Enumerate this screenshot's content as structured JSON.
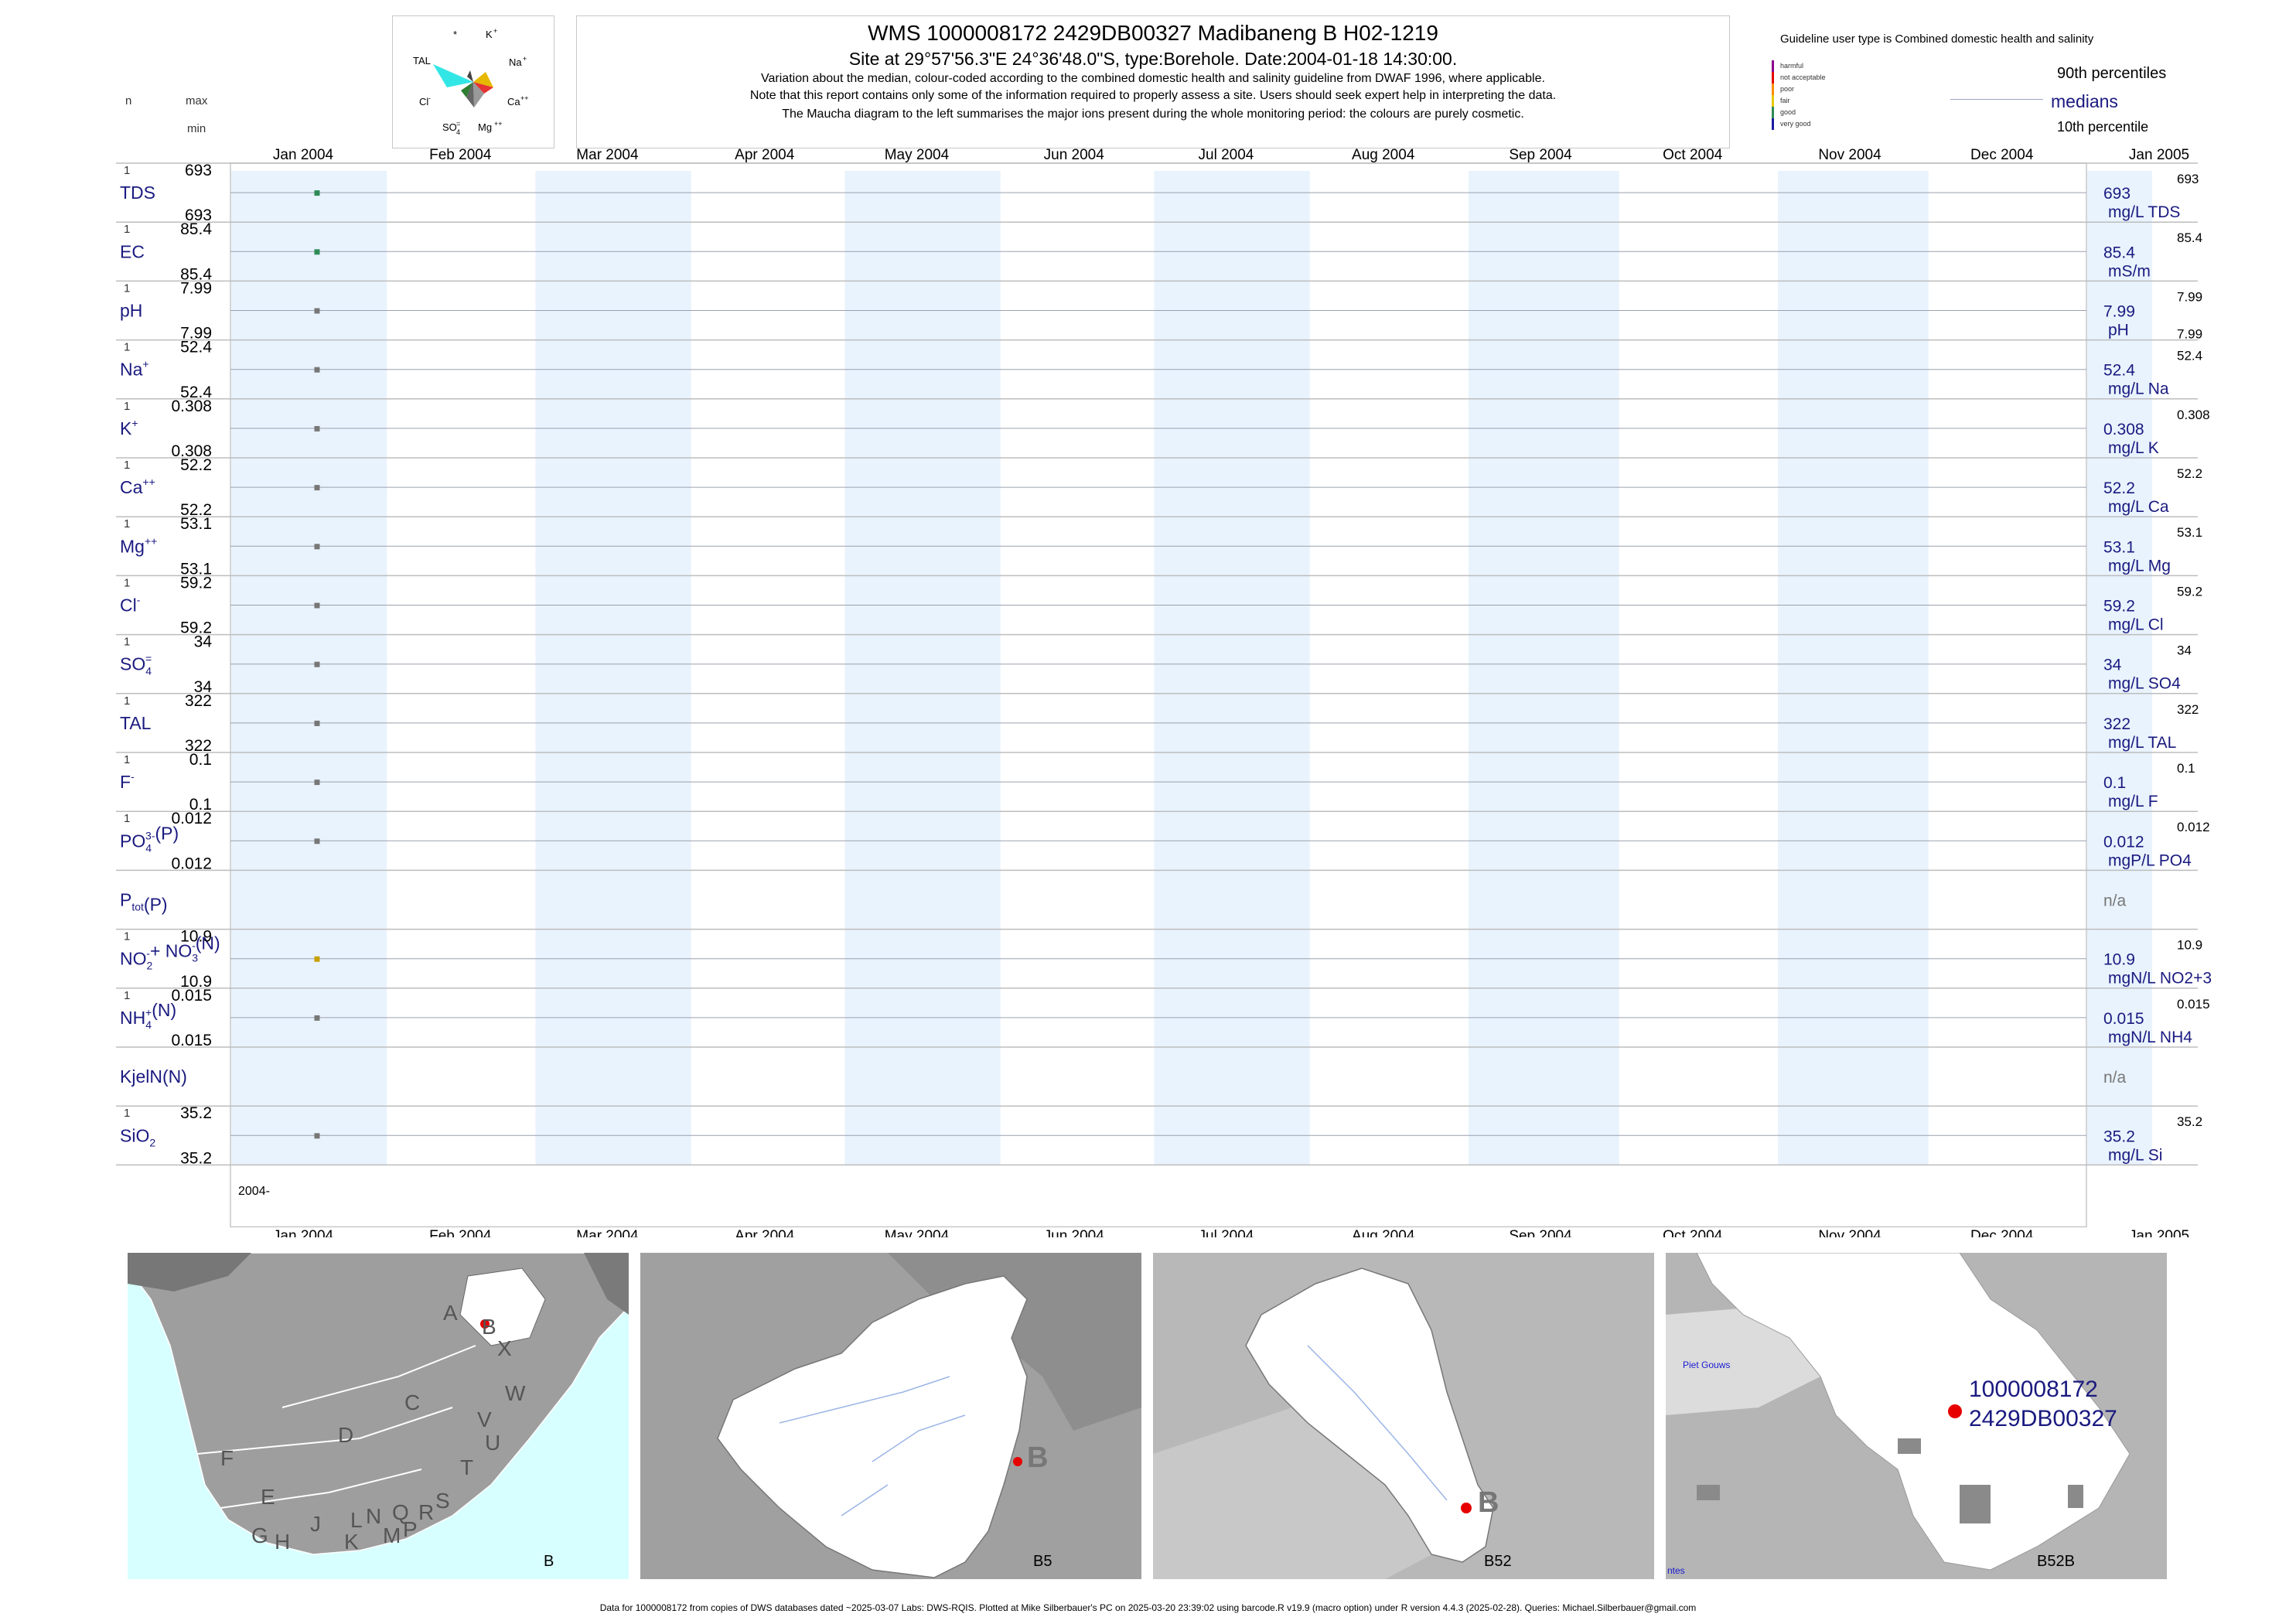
{
  "header": {
    "title": "WMS 1000008172 2429DB00327 Madibaneng B H02-1219",
    "subtitle": "Site at 29°57'56.3\"E 24°36'48.0\"S, type:Borehole. Date:2004-01-18 14:30:00.",
    "note1": "Variation about the median,  colour-coded according to the combined domestic health and salinity guideline from DWAF 1996, where applicable.",
    "note2": "Note that this report contains only some of the information required to properly assess a site. Users should seek expert help in interpreting the data.",
    "note3": "The Maucha diagram to the left summarises the major ions present during the whole monitoring period: the colours are purely cosmetic."
  },
  "left_header": {
    "n": "n",
    "max": "max",
    "min": "min"
  },
  "maucha": {
    "labels": [
      "*",
      "K+",
      "Na+",
      "Ca++",
      "Mg++",
      "SO4=",
      "Cl-",
      "TAL"
    ],
    "colors": {
      "tal": "#33e6e6",
      "na": "#e6b800",
      "ca": "#e63333",
      "mg": "#999999",
      "so4": "#666666",
      "cl": "#2e7d32",
      "k": "#444444"
    }
  },
  "legend": {
    "title": "Guideline user type is Combined domestic health and salinity",
    "classes": [
      {
        "label": "harmful",
        "color": "#8b008b"
      },
      {
        "label": "not acceptable",
        "color": "#e60000"
      },
      {
        "label": "poor",
        "color": "#ff8c00"
      },
      {
        "label": "fair",
        "color": "#e6c800"
      },
      {
        "label": "good",
        "color": "#2e8b57"
      },
      {
        "label": "very good",
        "color": "#1a1aa0"
      }
    ],
    "p90": "90th percentiles",
    "medians": "medians",
    "p10": "10th percentile"
  },
  "axis": {
    "months": [
      "Jan 2004",
      "Feb 2004",
      "Mar 2004",
      "Apr 2004",
      "May 2004",
      "Jun 2004",
      "Jul 2004",
      "Aug 2004",
      "Sep 2004",
      "Oct 2004",
      "Nov 2004",
      "Dec 2004",
      "Jan 2005"
    ],
    "year_label": "2004-"
  },
  "chart_data": {
    "type": "scatter",
    "x_range": [
      "2004-01-01",
      "2005-01-01"
    ],
    "sample_date": "2004-01-18",
    "panels": [
      {
        "id": "tds",
        "label": "TDS",
        "n": "1",
        "max": "693",
        "min": "693",
        "value": 693,
        "right_value": "693",
        "right_unit": "mg/L TDS",
        "right_max": "693",
        "right_min": "",
        "color": "#2e8b57"
      },
      {
        "id": "ec",
        "label": "EC",
        "n": "1",
        "max": "85.4",
        "min": "85.4",
        "value": 85.4,
        "right_value": "85.4",
        "right_unit": "mS/m",
        "right_max": "85.4",
        "right_min": "",
        "color": "#2e8b57"
      },
      {
        "id": "ph",
        "label": "pH",
        "n": "1",
        "max": "7.99",
        "min": "7.99",
        "value": 7.99,
        "right_value": "7.99",
        "right_unit": "pH",
        "right_max": "7.99",
        "right_min": "7.99",
        "color": "#777777"
      },
      {
        "id": "na",
        "label": "Na",
        "sup": "+",
        "n": "1",
        "max": "52.4",
        "min": "52.4",
        "value": 52.4,
        "right_value": "52.4",
        "right_unit": "mg/L Na",
        "right_max": "52.4",
        "right_min": "",
        "color": "#777777"
      },
      {
        "id": "k",
        "label": "K",
        "sup": "+",
        "n": "1",
        "max": "0.308",
        "min": "0.308",
        "value": 0.308,
        "right_value": "0.308",
        "right_unit": "mg/L K",
        "right_max": "0.308",
        "right_min": "",
        "color": "#777777"
      },
      {
        "id": "ca",
        "label": "Ca",
        "sup": "++",
        "n": "1",
        "max": "52.2",
        "min": "52.2",
        "value": 52.2,
        "right_value": "52.2",
        "right_unit": "mg/L Ca",
        "right_max": "52.2",
        "right_min": "",
        "color": "#777777"
      },
      {
        "id": "mg",
        "label": "Mg",
        "sup": "++",
        "n": "1",
        "max": "53.1",
        "min": "53.1",
        "value": 53.1,
        "right_value": "53.1",
        "right_unit": "mg/L Mg",
        "right_max": "53.1",
        "right_min": "",
        "color": "#777777"
      },
      {
        "id": "cl",
        "label": "Cl",
        "sup": "-",
        "n": "1",
        "max": "59.2",
        "min": "59.2",
        "value": 59.2,
        "right_value": "59.2",
        "right_unit": "mg/L Cl",
        "right_max": "59.2",
        "right_min": "",
        "color": "#777777"
      },
      {
        "id": "so4",
        "label": "SO",
        "sub": "4",
        "sup": "=",
        "n": "1",
        "max": "34",
        "min": "34",
        "value": 34,
        "right_value": "34",
        "right_unit": "mg/L SO4",
        "right_max": "34",
        "right_min": "",
        "color": "#777777"
      },
      {
        "id": "tal",
        "label": "TAL",
        "n": "1",
        "max": "322",
        "min": "322",
        "value": 322,
        "right_value": "322",
        "right_unit": "mg/L TAL",
        "right_max": "322",
        "right_min": "",
        "color": "#777777"
      },
      {
        "id": "f",
        "label": "F",
        "sup": "-",
        "n": "1",
        "max": "0.1",
        "min": "0.1",
        "value": 0.1,
        "right_value": "0.1",
        "right_unit": "mg/L F",
        "right_max": "0.1",
        "right_min": "",
        "color": "#777777"
      },
      {
        "id": "po4",
        "label": "PO",
        "sub": "4",
        "sup": "3-",
        "tail": "(P)",
        "n": "1",
        "max": "0.012",
        "min": "0.012",
        "value": 0.012,
        "right_value": "0.012",
        "right_unit": "mgP/L PO4",
        "right_max": "0.012",
        "right_min": "",
        "color": "#777777"
      },
      {
        "id": "ptot",
        "label": "P",
        "sub": "tot",
        "tail": "(P)",
        "n": "",
        "max": "",
        "min": "",
        "value": null,
        "right_value": "n/a",
        "right_unit": "",
        "right_max": "",
        "right_min": "",
        "color": "#777777"
      },
      {
        "id": "nox",
        "label": "NO",
        "sub": "2",
        "sup": "-",
        "tail": "+ NO",
        "sub2": "3",
        "sup2": "-",
        "tail2": "(N)",
        "n": "1",
        "max": "10.9",
        "min": "10.9",
        "value": 10.9,
        "right_value": "10.9",
        "right_unit": "mgN/L NO2+3",
        "right_max": "10.9",
        "right_min": "",
        "color": "#c8a000"
      },
      {
        "id": "nh4",
        "label": "NH",
        "sub": "4",
        "sup": "+",
        "tail": "(N)",
        "n": "1",
        "max": "0.015",
        "min": "0.015",
        "value": 0.015,
        "right_value": "0.015",
        "right_unit": "mgN/L NH4",
        "right_max": "0.015",
        "right_min": "",
        "color": "#777777"
      },
      {
        "id": "kjel",
        "label": "KjelN(N)",
        "n": "",
        "max": "",
        "min": "",
        "value": null,
        "right_value": "n/a",
        "right_unit": "",
        "right_max": "",
        "right_min": "",
        "color": "#777777"
      },
      {
        "id": "sio2",
        "label": "SiO",
        "sub": "2",
        "n": "1",
        "max": "35.2",
        "min": "35.2",
        "value": 35.2,
        "right_value": "35.2",
        "right_unit": "mg/L Si",
        "right_max": "35.2",
        "right_min": "",
        "color": "#777777"
      }
    ]
  },
  "maps": [
    {
      "caption": "B",
      "letters": [
        "A",
        "B",
        "X",
        "W",
        "C",
        "V",
        "U",
        "D",
        "T",
        "F",
        "E",
        "S",
        "R",
        "Q",
        "N",
        "L",
        "J",
        "P",
        "M",
        "K",
        "H",
        "G"
      ]
    },
    {
      "caption": "B5",
      "marker": "B"
    },
    {
      "caption": "B52",
      "marker": "B"
    },
    {
      "caption": "B52B",
      "site_line1": "1000008172",
      "site_line2": "2429DB00327",
      "place1": "Piet Gouws",
      "place2": "ntes"
    }
  ],
  "footer": "Data for 1000008172 from copies of DWS databases dated ~2025-03-07 Labs: DWS-RQIS. Plotted at Mike Silberbauer's PC on 2025-03-20 23:39:02 using barcode.R v19.9 (macro option) under R version 4.4.3 (2025-02-28). Queries: Michael.Silberbauer@gmail.com"
}
